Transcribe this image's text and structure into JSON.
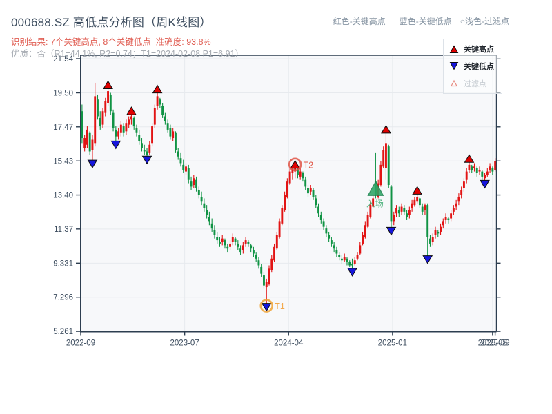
{
  "header": {
    "title": "000688.SZ 高低点分析图（周K线图）",
    "legend_red": "红色-关键高点",
    "legend_blue": "蓝色-关键低点",
    "legend_filtered": "○浅色-过滤点",
    "result_line": "识别结果: 7个关键高点, 8个关键低点  准确度: 93.8%",
    "quality_line": "优质：否（R1=44.1%, R2=0.74；T1=2024-02-08 P1=6.91）"
  },
  "legend": {
    "high_label": "关键高点",
    "low_label": "关键低点",
    "filtered_label": "过滤点"
  },
  "colors": {
    "up": "#e21414",
    "down": "#109344",
    "key_high": "#e00000",
    "key_low": "#1616dd",
    "marker_edge": "#0d0d0d",
    "entry": "#2da565",
    "entry_edge": "#17814b",
    "t1": "#f0a232",
    "t1_text": "#f3a94c",
    "t2": "#e05545",
    "spine": "#2d3e50",
    "grid": "#e7eaee",
    "plot_bg": "#f7f8fa",
    "tick_text": "#3c4c5e",
    "filtered_edge": "#e58a80"
  },
  "chart_data": {
    "type": "candlestick",
    "symbol": "000688.SZ",
    "period": "weekly",
    "title": "000688.SZ 高低点分析图（周K线图）",
    "ylim": [
      5.05,
      21.75
    ],
    "y_ticks": [
      21.54,
      19.5,
      17.47,
      15.43,
      13.4,
      11.37,
      9.331,
      7.296,
      5.261
    ],
    "y_tick_labels": [
      "21.54",
      "19.50",
      "17.47",
      "15.43",
      "13.40",
      "11.37",
      "9.331",
      "7.296",
      "5.261"
    ],
    "x_ticks": [
      {
        "index": 0,
        "label": "2022-09"
      },
      {
        "index": 40,
        "label": "2023-07"
      },
      {
        "index": 80,
        "label": "2024-04"
      },
      {
        "index": 120,
        "label": "2025-01"
      },
      {
        "index": 158.5,
        "label": "2025-08"
      },
      {
        "index": 159.5,
        "label": "2025-09"
      }
    ],
    "candles": [
      [
        18.4,
        18.8,
        16.5,
        16.8
      ],
      [
        16.2,
        17.0,
        16.0,
        16.8
      ],
      [
        16.4,
        17.5,
        16.2,
        17.3
      ],
      [
        17.1,
        17.2,
        15.8,
        16.0
      ],
      [
        16.1,
        17.0,
        15.46,
        16.7
      ],
      [
        16.5,
        20.1,
        16.3,
        19.3
      ],
      [
        19.1,
        19.4,
        17.9,
        18.1
      ],
      [
        18.0,
        18.4,
        17.3,
        17.5
      ],
      [
        17.6,
        18.6,
        17.4,
        18.4
      ],
      [
        18.3,
        19.2,
        18.1,
        19.0
      ],
      [
        18.9,
        19.85,
        18.7,
        19.6
      ],
      [
        19.4,
        19.5,
        18.2,
        18.4
      ],
      [
        18.3,
        18.5,
        17.2,
        17.4
      ],
      [
        17.3,
        17.5,
        16.6,
        16.9
      ],
      [
        16.9,
        17.4,
        16.7,
        17.2
      ],
      [
        17.1,
        17.8,
        16.9,
        17.6
      ],
      [
        17.5,
        17.7,
        16.9,
        17.1
      ],
      [
        17.2,
        17.9,
        17.0,
        17.7
      ],
      [
        17.6,
        18.1,
        17.4,
        17.9
      ],
      [
        17.9,
        18.3,
        17.6,
        18.1
      ],
      [
        18.0,
        18.1,
        17.3,
        17.5
      ],
      [
        17.4,
        17.6,
        16.9,
        17.1
      ],
      [
        17.0,
        17.3,
        16.4,
        16.6
      ],
      [
        16.5,
        16.8,
        16.0,
        16.2
      ],
      [
        16.1,
        16.4,
        15.8,
        16.0
      ],
      [
        16.0,
        16.2,
        15.7,
        15.8
      ],
      [
        15.9,
        16.6,
        15.8,
        16.4
      ],
      [
        16.5,
        17.7,
        16.3,
        17.5
      ],
      [
        17.6,
        18.8,
        17.4,
        18.6
      ],
      [
        18.7,
        19.6,
        18.5,
        19.3
      ],
      [
        19.1,
        19.2,
        18.6,
        18.8
      ],
      [
        18.7,
        18.9,
        18.0,
        18.2
      ],
      [
        18.1,
        18.3,
        17.6,
        17.8
      ],
      [
        17.7,
        17.9,
        17.1,
        17.3
      ],
      [
        17.4,
        17.6,
        16.7,
        16.9
      ],
      [
        16.8,
        17.4,
        16.6,
        17.2
      ],
      [
        17.1,
        17.2,
        15.9,
        16.1
      ],
      [
        16.0,
        16.2,
        15.5,
        15.7
      ],
      [
        15.6,
        15.9,
        15.1,
        15.3
      ],
      [
        15.2,
        15.5,
        14.7,
        14.9
      ],
      [
        14.8,
        15.3,
        14.6,
        15.1
      ],
      [
        15.0,
        15.2,
        14.1,
        14.3
      ],
      [
        14.2,
        14.5,
        13.7,
        13.9
      ],
      [
        14.0,
        14.6,
        13.8,
        14.4
      ],
      [
        14.3,
        14.5,
        13.6,
        13.8
      ],
      [
        13.7,
        13.9,
        13.2,
        13.4
      ],
      [
        13.3,
        13.6,
        12.8,
        13.0
      ],
      [
        12.9,
        13.2,
        12.4,
        12.6
      ],
      [
        12.5,
        12.8,
        12.0,
        12.2
      ],
      [
        12.1,
        12.4,
        11.6,
        11.8
      ],
      [
        11.7,
        12.0,
        11.2,
        11.4
      ],
      [
        11.3,
        11.6,
        10.8,
        11.0
      ],
      [
        10.9,
        11.2,
        10.5,
        10.7
      ],
      [
        10.6,
        10.9,
        10.3,
        10.5
      ],
      [
        10.6,
        11.0,
        10.4,
        10.8
      ],
      [
        10.7,
        10.8,
        10.2,
        10.4
      ],
      [
        10.3,
        10.5,
        10.0,
        10.2
      ],
      [
        10.3,
        10.7,
        10.1,
        10.5
      ],
      [
        10.6,
        11.1,
        10.4,
        10.9
      ],
      [
        10.8,
        10.9,
        10.4,
        10.6
      ],
      [
        10.5,
        10.7,
        10.1,
        10.3
      ],
      [
        10.2,
        10.4,
        9.8,
        10.0
      ],
      [
        10.1,
        10.6,
        9.9,
        10.4
      ],
      [
        10.5,
        10.9,
        10.3,
        10.7
      ],
      [
        10.6,
        10.7,
        10.3,
        10.5
      ],
      [
        10.4,
        10.5,
        10.0,
        10.2
      ],
      [
        10.1,
        10.3,
        9.7,
        9.9
      ],
      [
        9.8,
        10.0,
        9.4,
        9.6
      ],
      [
        9.5,
        9.7,
        9.0,
        9.2
      ],
      [
        9.1,
        9.3,
        8.5,
        8.7
      ],
      [
        8.6,
        8.8,
        7.8,
        8.0
      ],
      [
        7.9,
        8.4,
        6.91,
        8.2
      ],
      [
        8.1,
        9.2,
        8.0,
        9.0
      ],
      [
        8.9,
        9.8,
        8.8,
        9.6
      ],
      [
        9.5,
        10.5,
        9.4,
        10.3
      ],
      [
        10.2,
        11.2,
        10.1,
        11.0
      ],
      [
        10.9,
        12.0,
        10.8,
        11.8
      ],
      [
        11.7,
        12.8,
        11.6,
        12.6
      ],
      [
        12.5,
        13.6,
        12.4,
        13.4
      ],
      [
        13.3,
        14.4,
        13.2,
        14.2
      ],
      [
        14.1,
        15.0,
        14.0,
        14.8
      ],
      [
        14.7,
        15.2,
        14.3,
        15.0
      ],
      [
        14.8,
        15.1,
        14.4,
        15.0
      ],
      [
        15.0,
        15.1,
        14.4,
        14.6
      ],
      [
        14.5,
        15.0,
        14.3,
        14.8
      ],
      [
        14.7,
        14.8,
        14.2,
        14.4
      ],
      [
        14.3,
        14.5,
        13.7,
        13.9
      ],
      [
        13.8,
        14.0,
        13.3,
        13.5
      ],
      [
        13.6,
        14.0,
        13.4,
        13.8
      ],
      [
        13.7,
        13.8,
        13.1,
        13.3
      ],
      [
        13.2,
        13.4,
        12.6,
        12.8
      ],
      [
        12.7,
        12.9,
        12.1,
        12.3
      ],
      [
        12.2,
        12.4,
        11.7,
        11.9
      ],
      [
        11.8,
        12.0,
        11.3,
        11.5
      ],
      [
        11.4,
        11.6,
        10.9,
        11.1
      ],
      [
        11.0,
        11.2,
        10.6,
        10.8
      ],
      [
        10.7,
        10.9,
        10.3,
        10.5
      ],
      [
        10.4,
        10.6,
        10.0,
        10.2
      ],
      [
        10.1,
        10.3,
        9.7,
        9.9
      ],
      [
        9.8,
        10.0,
        9.5,
        9.7
      ],
      [
        9.6,
        9.8,
        9.3,
        9.5
      ],
      [
        9.5,
        9.9,
        9.4,
        9.7
      ],
      [
        9.6,
        9.7,
        9.2,
        9.4
      ],
      [
        9.4,
        9.5,
        9.1,
        9.2
      ],
      [
        9.3,
        9.6,
        9.0,
        9.2
      ],
      [
        9.3,
        9.7,
        9.2,
        9.5
      ],
      [
        9.6,
        10.0,
        9.5,
        9.8
      ],
      [
        9.9,
        10.6,
        9.8,
        10.4
      ],
      [
        10.5,
        11.2,
        10.4,
        11.0
      ],
      [
        10.9,
        11.8,
        10.8,
        11.6
      ],
      [
        11.5,
        12.4,
        11.4,
        12.2
      ],
      [
        12.1,
        13.0,
        12.0,
        12.8
      ],
      [
        12.7,
        13.4,
        12.6,
        13.2
      ],
      [
        14.2,
        15.9,
        13.2,
        13.4
      ],
      [
        13.3,
        14.3,
        13.2,
        14.1
      ],
      [
        14.0,
        15.4,
        13.9,
        15.2
      ],
      [
        15.1,
        16.3,
        15.0,
        16.1
      ],
      [
        15.0,
        17.2,
        14.3,
        16.5
      ],
      [
        16.3,
        16.4,
        13.8,
        14.0
      ],
      [
        13.9,
        14.0,
        11.45,
        11.8
      ],
      [
        11.8,
        12.4,
        11.6,
        12.2
      ],
      [
        12.3,
        12.8,
        12.1,
        12.6
      ],
      [
        12.5,
        12.7,
        12.1,
        12.3
      ],
      [
        12.4,
        12.9,
        12.2,
        12.7
      ],
      [
        12.6,
        12.8,
        12.2,
        12.4
      ],
      [
        12.3,
        12.5,
        11.9,
        12.1
      ],
      [
        12.2,
        12.7,
        12.0,
        12.5
      ],
      [
        12.6,
        13.1,
        12.4,
        12.9
      ],
      [
        12.8,
        13.3,
        12.7,
        13.1
      ],
      [
        13.0,
        13.55,
        12.9,
        13.3
      ],
      [
        13.2,
        13.3,
        12.6,
        12.8
      ],
      [
        12.7,
        12.9,
        12.2,
        12.4
      ],
      [
        12.5,
        12.9,
        12.2,
        12.8
      ],
      [
        12.8,
        12.9,
        9.75,
        10.9
      ],
      [
        10.8,
        11.0,
        10.3,
        10.5
      ],
      [
        10.6,
        11.1,
        10.4,
        10.9
      ],
      [
        11.0,
        11.5,
        10.8,
        11.3
      ],
      [
        11.2,
        11.3,
        10.9,
        11.1
      ],
      [
        11.2,
        11.7,
        11.0,
        11.5
      ],
      [
        11.6,
        12.0,
        11.4,
        11.8
      ],
      [
        11.9,
        12.3,
        11.7,
        12.1
      ],
      [
        12.0,
        12.1,
        11.7,
        11.9
      ],
      [
        12.0,
        12.5,
        11.8,
        12.3
      ],
      [
        12.4,
        12.8,
        12.2,
        12.6
      ],
      [
        12.7,
        13.1,
        12.5,
        12.9
      ],
      [
        13.0,
        13.5,
        12.8,
        13.3
      ],
      [
        13.4,
        13.9,
        13.2,
        13.7
      ],
      [
        13.8,
        14.4,
        13.6,
        14.2
      ],
      [
        14.3,
        15.0,
        14.1,
        14.8
      ],
      [
        14.9,
        15.45,
        14.7,
        15.2
      ],
      [
        15.1,
        15.2,
        14.7,
        14.9
      ],
      [
        15.0,
        15.3,
        14.8,
        15.1
      ],
      [
        15.0,
        15.1,
        14.5,
        14.7
      ],
      [
        14.8,
        15.1,
        14.6,
        14.9
      ],
      [
        14.8,
        14.9,
        14.3,
        14.5
      ],
      [
        14.4,
        14.7,
        14.25,
        14.6
      ],
      [
        14.6,
        15.0,
        14.5,
        14.8
      ],
      [
        14.9,
        15.3,
        14.7,
        15.1
      ],
      [
        15.0,
        15.1,
        14.6,
        14.8
      ],
      [
        14.9,
        15.6,
        14.8,
        15.4
      ]
    ],
    "key_highs": [
      {
        "index": 10,
        "price": 19.85
      },
      {
        "index": 19,
        "price": 18.3
      },
      {
        "index": 29,
        "price": 19.6
      },
      {
        "index": 82,
        "price": 15.1
      },
      {
        "index": 117,
        "price": 17.2
      },
      {
        "index": 129,
        "price": 13.55
      },
      {
        "index": 149,
        "price": 15.45
      }
    ],
    "key_lows": [
      {
        "index": 4,
        "price": 15.46
      },
      {
        "index": 13,
        "price": 16.6
      },
      {
        "index": 25,
        "price": 15.7
      },
      {
        "index": 71,
        "price": 6.91
      },
      {
        "index": 104,
        "price": 9.0
      },
      {
        "index": 119,
        "price": 11.45
      },
      {
        "index": 133,
        "price": 9.75
      },
      {
        "index": 155,
        "price": 14.25
      }
    ],
    "entry_marker": {
      "index": 113,
      "price": 13.7,
      "label": "入场"
    },
    "annotations": [
      {
        "label": "T1",
        "index": 71,
        "price": 6.91,
        "kind": "low"
      },
      {
        "label": "T2",
        "index": 82,
        "price": 15.1,
        "kind": "high"
      }
    ]
  }
}
